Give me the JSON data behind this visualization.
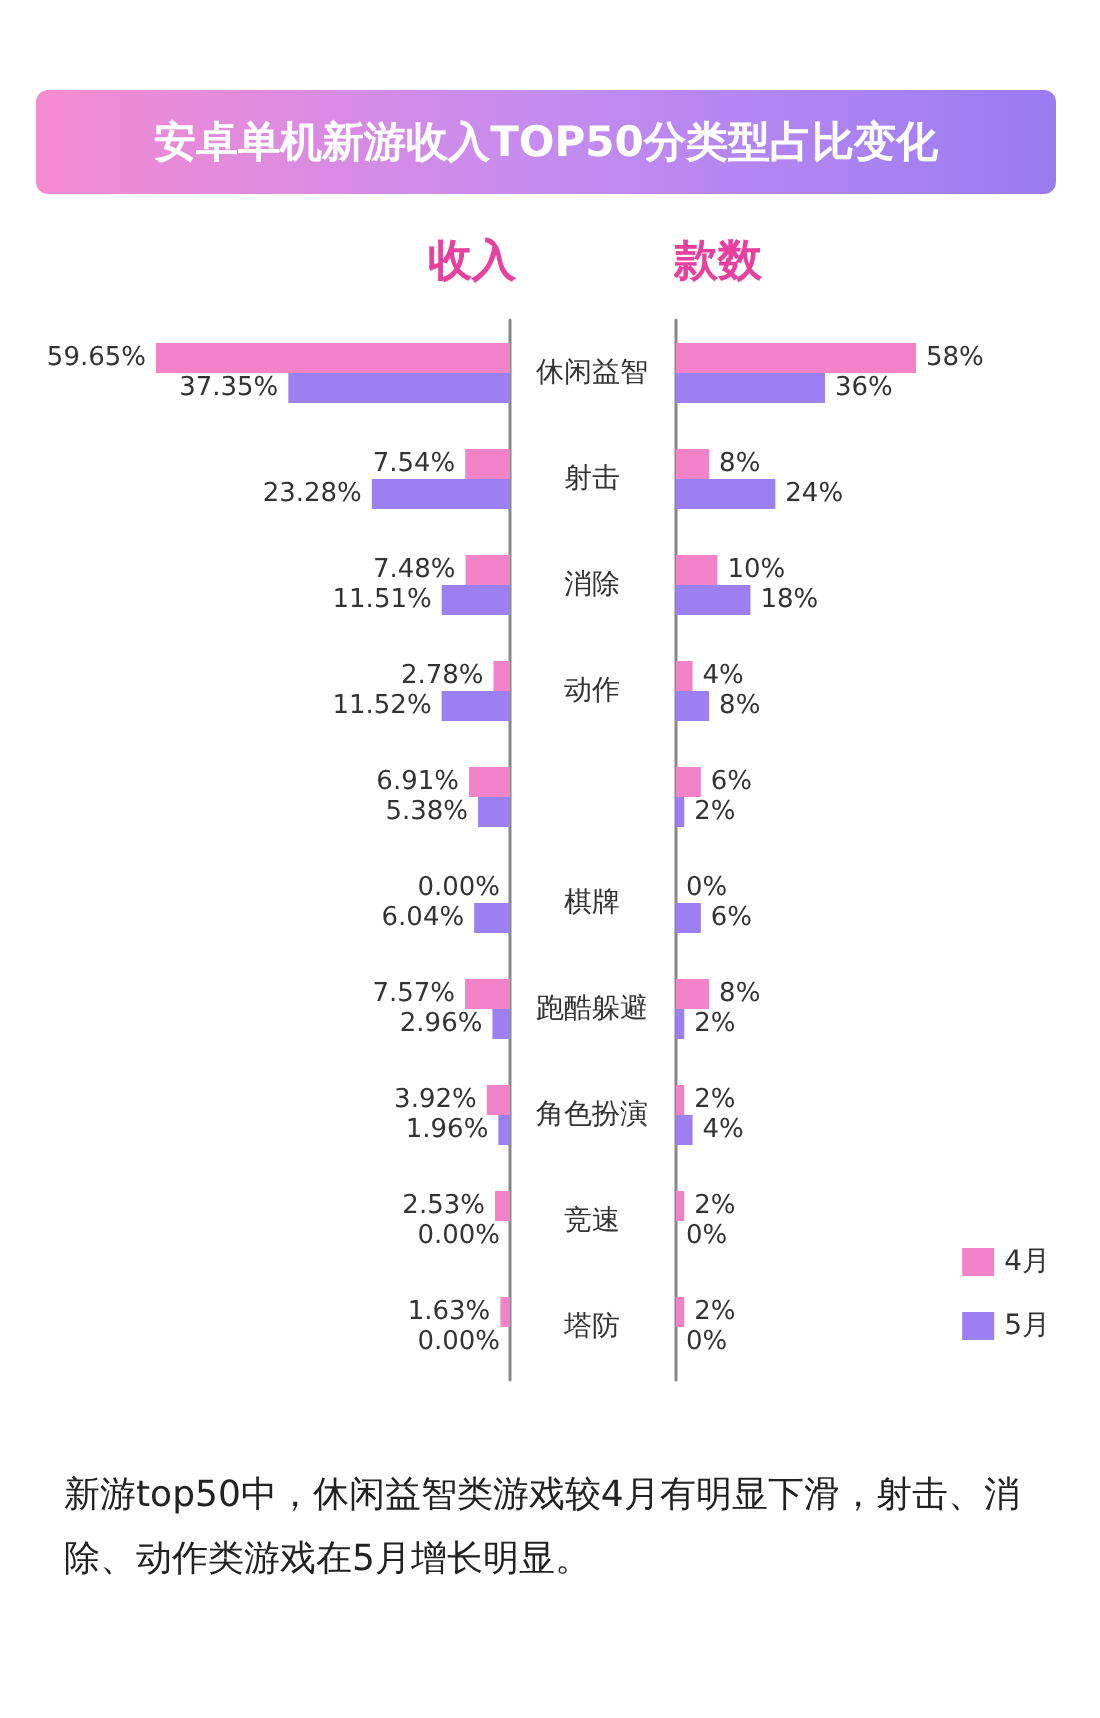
{
  "chart_data": [
    {
      "type": "bar",
      "orientation": "horizontal",
      "title": "安卓单机新游收入TOP50分类型占比变化",
      "xlabel": "收入",
      "categories": [
        "休闲益智",
        "射击",
        "消除",
        "动作",
        null,
        "棋牌",
        "跑酷躲避",
        "角色扮演",
        "竞速",
        "塔防"
      ],
      "series": [
        {
          "color": "#f383c8",
          "values": [
            59.65,
            7.54,
            7.48,
            2.78,
            6.91,
            0.0,
            7.57,
            3.92,
            2.53,
            1.63
          ],
          "value_labels": [
            "59.65%",
            "7.54%",
            "7.48%",
            "2.78%",
            "6.91%",
            "0.00%",
            "7.57%",
            "3.92%",
            "2.53%",
            "1.63%"
          ]
        },
        {
          "color": "#9c80f2",
          "values": [
            37.35,
            23.28,
            11.51,
            11.52,
            5.38,
            6.04,
            2.96,
            1.96,
            0.0,
            0.0
          ],
          "value_labels": [
            "37.35%",
            "23.28%",
            "11.51%",
            "11.52%",
            "5.38%",
            "6.04%",
            "2.96%",
            "1.96%",
            "0.00%",
            "0.00%"
          ]
        }
      ],
      "tick_labels": "y",
      "annotations": [
        "新游top50中，休闲益智类游戏较4月有明显下滑，射击、消除、动作类游戏在5月增长明显。"
      ]
    },
    {
      "type": "bar",
      "orientation": "horizontal",
      "xlabel": "款数",
      "categories": [
        null,
        null,
        null,
        null,
        null,
        null,
        null,
        null,
        null,
        null
      ],
      "series": [
        {
          "name": "4月",
          "color": "#f383c8",
          "values": [
            58,
            8,
            10,
            4,
            6,
            0,
            8,
            2,
            2,
            2
          ],
          "value_labels": [
            "58%",
            "8%",
            "10%",
            "4%",
            "6%",
            "0%",
            "8%",
            "2%",
            "2%",
            "2%"
          ]
        },
        {
          "name": "5月",
          "color": "#9c80f2",
          "values": [
            36,
            24,
            18,
            8,
            2,
            6,
            2,
            4,
            0,
            0
          ],
          "value_labels": [
            "36%",
            "24%",
            "18%",
            "8%",
            "2%",
            "6%",
            "2%",
            "4%",
            "0%",
            "0%"
          ]
        }
      ],
      "tick_labels": false,
      "legend": "bottom right"
    }
  ]
}
